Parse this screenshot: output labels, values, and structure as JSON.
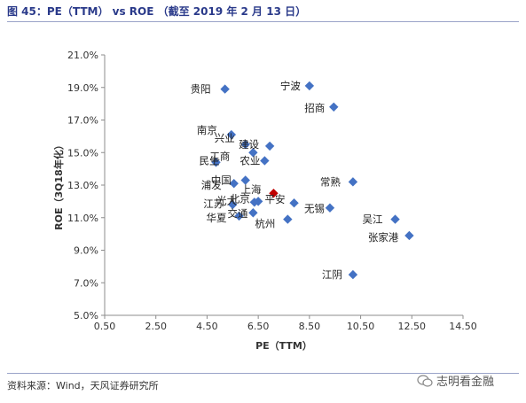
{
  "header": {
    "title": "图 45：PE（TTM） vs ROE （截至 2019 年 2 月 13 日）"
  },
  "footer": {
    "source": "资料来源：Wind，天风证券研究所",
    "watermark": "志明看金融"
  },
  "colors": {
    "marker": "#4472C4",
    "highlight": "#C00000",
    "title": "#2a3a8a"
  },
  "chart_data": {
    "type": "scatter",
    "xlabel": "PE（TTM）",
    "ylabel": "ROE（3Q18年化）",
    "xlim": [
      0.5,
      14.5
    ],
    "ylim": [
      5.0,
      21.0
    ],
    "xticks": [
      "0.50",
      "2.50",
      "4.50",
      "6.50",
      "8.50",
      "10.50",
      "12.50",
      "14.50"
    ],
    "yticks": [
      "5.0%",
      "7.0%",
      "9.0%",
      "11.0%",
      "13.0%",
      "15.0%",
      "17.0%",
      "19.0%",
      "21.0%"
    ],
    "grid": false,
    "legend": "none",
    "points": [
      {
        "label": "贵阳",
        "x": 5.2,
        "y": 18.9
      },
      {
        "label": "宁波",
        "x": 8.5,
        "y": 19.1
      },
      {
        "label": "招商",
        "x": 9.45,
        "y": 17.8
      },
      {
        "label": "南京",
        "x": 5.45,
        "y": 16.1
      },
      {
        "label": "兴业",
        "x": 6.0,
        "y": 15.5
      },
      {
        "label": "建设",
        "x": 6.95,
        "y": 15.4
      },
      {
        "label": "工商",
        "x": 6.3,
        "y": 15.0
      },
      {
        "label": "农业",
        "x": 6.75,
        "y": 14.5
      },
      {
        "label": "民生",
        "x": 4.85,
        "y": 14.4
      },
      {
        "label": "中国",
        "x": 6.0,
        "y": 13.3
      },
      {
        "label": "浦发",
        "x": 5.55,
        "y": 13.1
      },
      {
        "label": "常熟",
        "x": 10.2,
        "y": 13.2
      },
      {
        "label": "上海",
        "x": 7.1,
        "y": 12.5,
        "highlight": true
      },
      {
        "label": "北京",
        "x": 6.35,
        "y": 11.95
      },
      {
        "label": "光大",
        "x": 6.5,
        "y": 12.0
      },
      {
        "label": "江苏",
        "x": 5.5,
        "y": 11.8
      },
      {
        "label": "平安",
        "x": 7.9,
        "y": 11.9
      },
      {
        "label": "无锡",
        "x": 9.3,
        "y": 11.6
      },
      {
        "label": "交通",
        "x": 6.3,
        "y": 11.3
      },
      {
        "label": "华夏",
        "x": 5.75,
        "y": 11.1
      },
      {
        "label": "杭州",
        "x": 7.65,
        "y": 10.9
      },
      {
        "label": "吴江",
        "x": 11.85,
        "y": 10.9
      },
      {
        "label": "张家港",
        "x": 12.4,
        "y": 9.9
      },
      {
        "label": "江阴",
        "x": 10.2,
        "y": 7.5
      }
    ]
  }
}
